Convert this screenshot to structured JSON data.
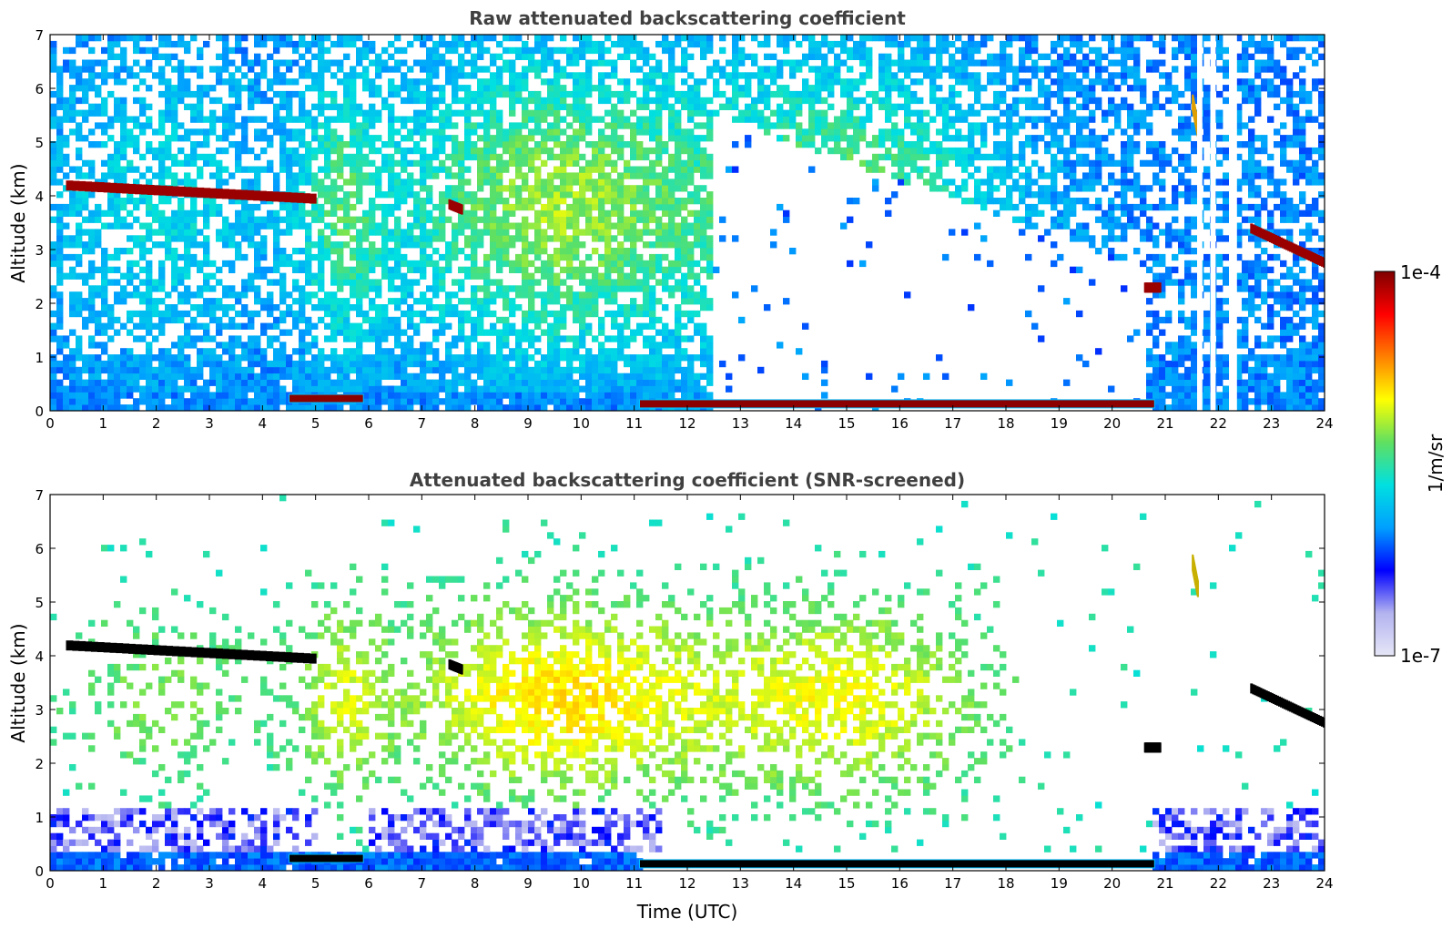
{
  "figure": {
    "colorbar": {
      "label": "1/m/sr",
      "max_label": "1e-4",
      "min_label": "1e-7",
      "scale": "log",
      "range": [
        1e-07,
        0.0001
      ],
      "colormap": [
        "#e6e6f7",
        "#b3b3f0",
        "#0000ff",
        "#00a0ff",
        "#00e0e0",
        "#60e060",
        "#ffff00",
        "#ff8000",
        "#ff0000",
        "#800000"
      ]
    }
  },
  "chart_data": [
    {
      "type": "heatmap",
      "title": "Raw attenuated backscattering coefficient",
      "xlabel": "",
      "ylabel": "Altitude (km)",
      "xlim": [
        0,
        24
      ],
      "ylim": [
        0,
        7
      ],
      "xticks": [
        "0",
        "1",
        "2",
        "3",
        "4",
        "5",
        "6",
        "7",
        "8",
        "9",
        "10",
        "11",
        "12",
        "13",
        "14",
        "15",
        "16",
        "17",
        "18",
        "19",
        "20",
        "21",
        "22",
        "23",
        "24"
      ],
      "yticks": [
        "0",
        "1",
        "2",
        "3",
        "4",
        "5",
        "6",
        "7"
      ],
      "grid": false,
      "features": {
        "cloud_layers": [
          {
            "t": [
              0.3,
              5.0
            ],
            "alt": [
              4.2,
              3.95
            ],
            "level": "high"
          },
          {
            "t": [
              7.5,
              7.75
            ],
            "alt": [
              3.85,
              3.75
            ],
            "level": "high"
          },
          {
            "t": [
              20.6,
              20.9
            ],
            "alt": [
              2.3,
              2.3
            ],
            "level": "high"
          },
          {
            "t": [
              22.6,
              24.0
            ],
            "alt": [
              3.4,
              2.75
            ],
            "level": "high"
          },
          {
            "t": [
              21.5,
              21.6
            ],
            "alt": [
              5.8,
              5.3
            ],
            "level": "mid-high"
          }
        ],
        "boundary_layer": [
          {
            "t": [
              4.5,
              5.9
            ],
            "alt": 0.22
          },
          {
            "t": [
              11.1,
              20.8
            ],
            "alt": 0.12
          }
        ],
        "data_gaps": [
          [
            21.6,
            21.7
          ],
          [
            21.85,
            21.95
          ],
          [
            22.2,
            22.35
          ]
        ]
      }
    },
    {
      "type": "heatmap",
      "title": "Attenuated backscattering coefficient (SNR-screened)",
      "xlabel": "Time (UTC)",
      "ylabel": "Altitude (km)",
      "xlim": [
        0,
        24
      ],
      "ylim": [
        0,
        7
      ],
      "xticks": [
        "0",
        "1",
        "2",
        "3",
        "4",
        "5",
        "6",
        "7",
        "8",
        "9",
        "10",
        "11",
        "12",
        "13",
        "14",
        "15",
        "16",
        "17",
        "18",
        "19",
        "20",
        "21",
        "22",
        "23",
        "24"
      ],
      "yticks": [
        "0",
        "1",
        "2",
        "3",
        "4",
        "5",
        "6",
        "7"
      ],
      "grid": false
    }
  ]
}
